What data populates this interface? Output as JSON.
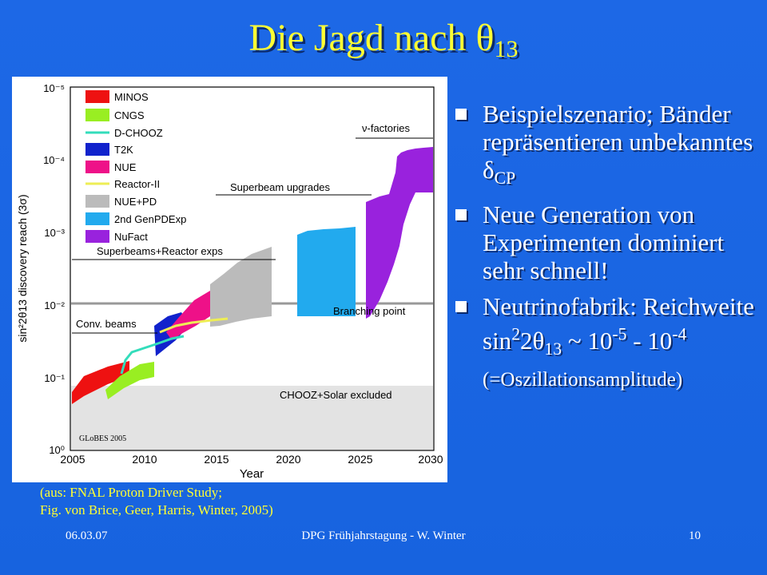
{
  "slide": {
    "title_main": "Die Jagd nach θ",
    "title_sub": "13",
    "caption_line1": "(aus: FNAL Proton Driver Study;",
    "caption_line2": "Fig. von Brice, Geer, Harris, Winter, 2005)",
    "footer": {
      "date": "06.03.07",
      "center": "DPG Frühjahrstagung - W. Winter",
      "page": "10"
    }
  },
  "bullets": [
    {
      "t1": "Beispielszenario; Bänder repräsentieren unbekanntes δ",
      "sub": "CP"
    },
    {
      "t1": "Neue Generation von Experimenten dominiert sehr schnell!"
    },
    {
      "t1": "Neutrinofabrik: Reichweite",
      "l2a": "sin",
      "l2sup": "2",
      "l2b": "2θ",
      "l2sub": "13",
      "l2c": " ~ 10",
      "l2sup2": "-5",
      "l2d": " - 10",
      "l2sup3": "-4",
      "l3": "(=Oszillationsamplitude)"
    }
  ],
  "chart_data": {
    "type": "area",
    "ylabel": "sin²2θ13 discovery reach (3σ)",
    "xlabel": "Year",
    "x_ticks": [
      "2005",
      "2010",
      "2015",
      "2020",
      "2025",
      "2030"
    ],
    "y_ticks": [
      "10⁻⁵",
      "10⁻⁴",
      "10⁻³",
      "10⁻²",
      "10⁻¹",
      "10⁰"
    ],
    "xlim": [
      2005,
      2030
    ],
    "ylim_log10": [
      -5,
      0
    ],
    "y_inverted": true,
    "legend": [
      {
        "name": "MINOS",
        "color": "#ee1111"
      },
      {
        "name": "CNGS",
        "color": "#99ee22"
      },
      {
        "name": "D-CHOOZ",
        "color": "#33ddbb"
      },
      {
        "name": "T2K",
        "color": "#1122cc"
      },
      {
        "name": "NUE",
        "color": "#ee1188"
      },
      {
        "name": "Reactor-II",
        "color": "#eeee55"
      },
      {
        "name": "NUE+PD",
        "color": "#bbbbbb"
      },
      {
        "name": "2nd GenPDExp",
        "color": "#22aaee"
      },
      {
        "name": "NuFact",
        "color": "#9922dd"
      }
    ],
    "annotations": {
      "factories": "ν-factories",
      "superbeam_upgrades": "Superbeam upgrades",
      "superbeams_reactor": "Superbeams+Reactor exps",
      "branching": "Branching point",
      "conv": "Conv. beams",
      "chooz": "CHOOZ+Solar excluded",
      "globes": "GLoBES 2005"
    },
    "branching_value": 0.013,
    "excluded_above": 0.15
  }
}
